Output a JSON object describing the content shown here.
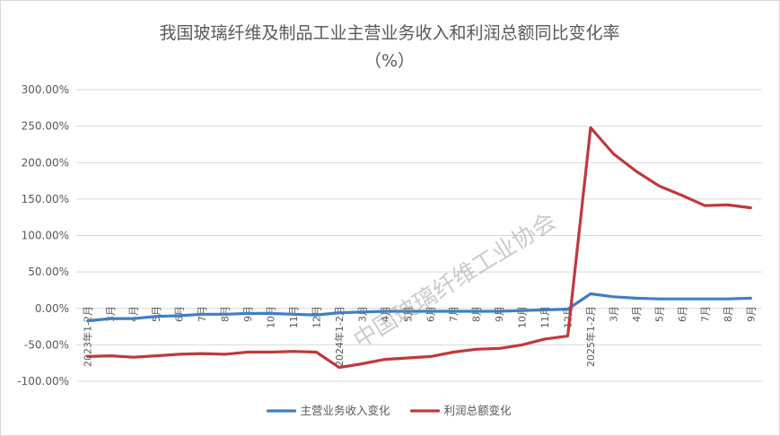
{
  "chart_data": {
    "type": "line",
    "title": "我国玻璃纤维及制品工业主营业务收入和利润总额同比变化率",
    "subtitle": "（%）",
    "ylim": [
      -100,
      300
    ],
    "yticks": [
      300,
      250,
      200,
      150,
      100,
      50,
      0,
      -50,
      -100
    ],
    "ytick_labels": [
      "300.00%",
      "250.00%",
      "200.00%",
      "150.00%",
      "100.00%",
      "50.00%",
      "0.00%",
      "-50.00%",
      "-100.00%"
    ],
    "categories": [
      "2023年1-2月",
      "3月",
      "4月",
      "5月",
      "6月",
      "7月",
      "8月",
      "9月",
      "10月",
      "11月",
      "12月",
      "2024年1-2月",
      "3月",
      "4月",
      "5月",
      "6月",
      "7月",
      "8月",
      "9月",
      "10月",
      "11月",
      "12月",
      "2025年1-2月",
      "3月",
      "4月",
      "5月",
      "6月",
      "7月",
      "8月",
      "9月"
    ],
    "grid": true,
    "legend_position": "bottom",
    "series": [
      {
        "name": "主营业务收入变化",
        "color": "#3f7fc4",
        "values": [
          -17,
          -14,
          -14,
          -11,
          -10,
          -8,
          -8,
          -7,
          -7,
          -8,
          -9,
          -6,
          -5,
          -4,
          -4,
          -4,
          -4,
          -4,
          -4,
          -3,
          -2,
          -1,
          20,
          16,
          14,
          13,
          13,
          13,
          13,
          14
        ]
      },
      {
        "name": "利润总额变化",
        "color": "#c0393b",
        "values": [
          -66,
          -65,
          -67,
          -65,
          -63,
          -62,
          -63,
          -60,
          -60,
          -59,
          -60,
          -81,
          -76,
          -70,
          -68,
          -66,
          -60,
          -56,
          -55,
          -50,
          -42,
          -38,
          248,
          212,
          188,
          168,
          155,
          141,
          142,
          138
        ]
      }
    ]
  },
  "watermark": "中国玻璃纤维工业协会"
}
